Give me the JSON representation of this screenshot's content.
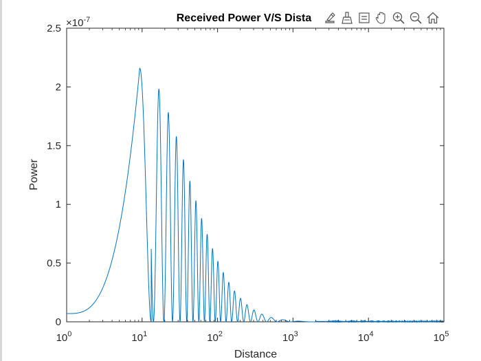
{
  "toolbar": {
    "buttons": [
      {
        "name": "export-icon"
      },
      {
        "name": "brush-icon"
      },
      {
        "name": "datatip-icon"
      },
      {
        "name": "pan-hand-icon"
      },
      {
        "name": "zoom-in-icon"
      },
      {
        "name": "zoom-out-icon"
      },
      {
        "name": "home-icon"
      }
    ]
  },
  "chart_data": {
    "type": "line",
    "title": "Received Power V/S Dista",
    "xlabel": "Distance",
    "ylabel": "Power",
    "x_scale": "log",
    "xlim": [
      1,
      100000
    ],
    "ylim": [
      0,
      2.5
    ],
    "y_exponent_label": "×10",
    "y_exponent_power": "-7",
    "x_ticks": [
      {
        "value": 1,
        "base": "10",
        "exp": "0"
      },
      {
        "value": 10,
        "base": "10",
        "exp": "1"
      },
      {
        "value": 100,
        "base": "10",
        "exp": "2"
      },
      {
        "value": 1000,
        "base": "10",
        "exp": "3"
      },
      {
        "value": 10000,
        "base": "10",
        "exp": "4"
      },
      {
        "value": 100000,
        "base": "10",
        "exp": "5"
      }
    ],
    "y_ticks": [
      {
        "value": 0,
        "label": "0"
      },
      {
        "value": 0.5,
        "label": "0.5"
      },
      {
        "value": 1,
        "label": "1"
      },
      {
        "value": 1.5,
        "label": "1.5"
      },
      {
        "value": 2,
        "label": "2"
      },
      {
        "value": 2.5,
        "label": "2.5"
      }
    ],
    "series": [
      {
        "color": "#0072bd",
        "description": "Oscillating two-ray interference power curve (in units of 1e-7): baseline ~0.07 near x=1, peaks near x≈9.3 (2.16), x≈16.5 (2.01), x≈22 (1.87), x≈27 (1.73), x≈32 (1.60); oscillations decay to ~0 beyond x≈500",
        "x": [
          1,
          2,
          3,
          4,
          5,
          6,
          7,
          8,
          9.3,
          10.5,
          12,
          13.2,
          16.5,
          22,
          27,
          32,
          100,
          300,
          600,
          1000,
          100000
        ],
        "y": [
          0.07,
          0.1,
          0.2,
          0.42,
          0.8,
          1.25,
          1.65,
          1.95,
          2.16,
          1.6,
          0.5,
          0.0,
          2.01,
          1.87,
          1.73,
          1.6,
          0.95,
          0.2,
          0.03,
          0.0,
          0.0
        ]
      }
    ],
    "grid": false,
    "background": "#ffffff"
  }
}
